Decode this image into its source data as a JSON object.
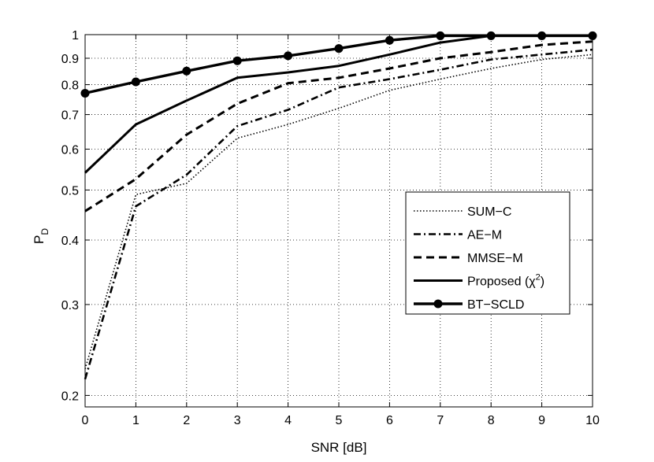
{
  "chart_data": {
    "type": "line",
    "title": "",
    "xlabel": "SNR [dB]",
    "ylabel_main": "P",
    "ylabel_sub": "D",
    "yscale": "log",
    "xlim": [
      0,
      10
    ],
    "ylim": [
      0.19,
      1.0
    ],
    "grid": true,
    "legend_position": "lower-right",
    "x": [
      0,
      1,
      2,
      3,
      4,
      5,
      6,
      7,
      8,
      9,
      10
    ],
    "x_ticks": [
      "0",
      "1",
      "2",
      "3",
      "4",
      "5",
      "6",
      "7",
      "8",
      "9",
      "10"
    ],
    "y_ticks": [
      {
        "value": 0.2,
        "label": "0.2"
      },
      {
        "value": 0.3,
        "label": "0.3"
      },
      {
        "value": 0.4,
        "label": "0.4"
      },
      {
        "value": 0.5,
        "label": "0.5"
      },
      {
        "value": 0.6,
        "label": "0.6"
      },
      {
        "value": 0.7,
        "label": "0.7"
      },
      {
        "value": 0.8,
        "label": "0.8"
      },
      {
        "value": 0.9,
        "label": "0.9"
      },
      {
        "value": 1.0,
        "label": "1"
      }
    ],
    "series": [
      {
        "name": "SUM−C",
        "style": "dotted",
        "marker": "none",
        "values": [
          0.225,
          0.49,
          0.515,
          0.63,
          0.67,
          0.72,
          0.78,
          0.82,
          0.86,
          0.895,
          0.915
        ]
      },
      {
        "name": "AE−M",
        "style": "dashdot",
        "marker": "none",
        "values": [
          0.215,
          0.465,
          0.535,
          0.665,
          0.715,
          0.79,
          0.82,
          0.855,
          0.895,
          0.915,
          0.935
        ]
      },
      {
        "name": "MMSE−M",
        "style": "dashed",
        "marker": "none",
        "values": [
          0.455,
          0.525,
          0.64,
          0.735,
          0.805,
          0.825,
          0.86,
          0.9,
          0.925,
          0.955,
          0.97
        ]
      },
      {
        "name": "Proposed (χ",
        "name_sup": "2",
        "name_tail": ")",
        "style": "solid",
        "marker": "none",
        "values": [
          0.54,
          0.67,
          0.745,
          0.825,
          0.845,
          0.87,
          0.915,
          0.965,
          0.995,
          0.995,
          0.995
        ]
      },
      {
        "name": "BT−SCLD",
        "style": "solid-bold",
        "marker": "circle",
        "values": [
          0.77,
          0.81,
          0.85,
          0.89,
          0.91,
          0.94,
          0.975,
          0.995,
          0.995,
          0.995,
          0.995
        ]
      }
    ]
  }
}
